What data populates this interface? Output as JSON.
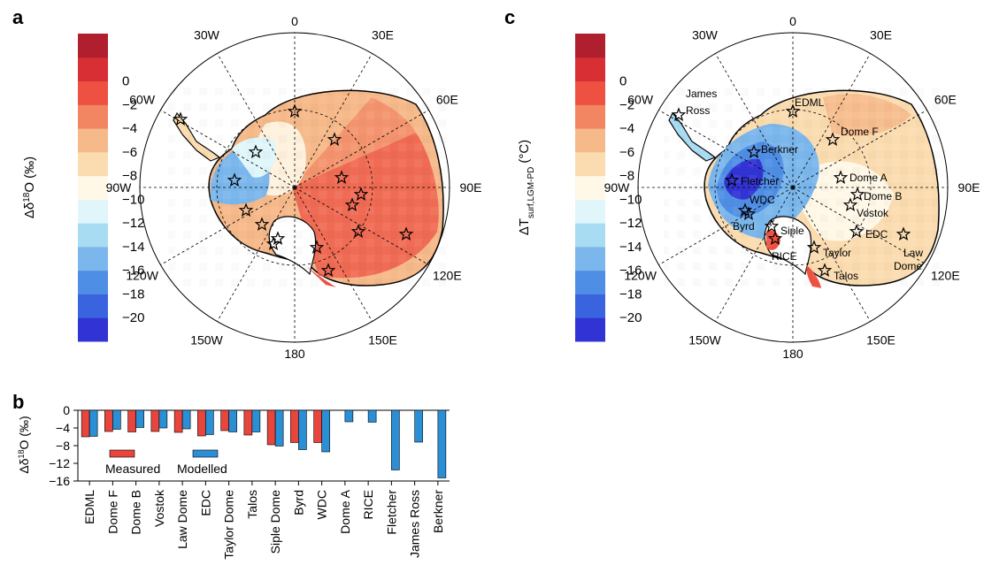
{
  "panels": {
    "a": {
      "label": "a"
    },
    "b": {
      "label": "b"
    },
    "c": {
      "label": "c"
    }
  },
  "colorbar_a": {
    "label_main": "Δδ",
    "label_sup": "18",
    "label_end": "O (‰)",
    "ticks": [
      "0",
      "−2",
      "−4",
      "−6",
      "−8",
      "−10",
      "−12",
      "−14",
      "−16",
      "−18",
      "−20"
    ]
  },
  "colorbar_c": {
    "label_main": "ΔT",
    "label_sub": "surf,LGM-PD",
    "label_end": "(°C)",
    "ticks": [
      "0",
      "−2",
      "−4",
      "−6",
      "−8",
      "−10",
      "−12",
      "−14",
      "−16",
      "−18",
      "−20"
    ]
  },
  "colors": {
    "scale": [
      "#3233d4",
      "#3a63df",
      "#4f8ee5",
      "#7bb7ec",
      "#a8dcf2",
      "#e0f6fa",
      "#fff8e7",
      "#fbdcb0",
      "#f6b98a",
      "#f28562",
      "#ee5142",
      "#d72f33",
      "#b01f2e"
    ],
    "measured": "#e8453c",
    "modelled": "#2b8fd6"
  },
  "map_labels": {
    "lon": [
      "0",
      "30E",
      "60E",
      "90E",
      "120E",
      "150E",
      "180",
      "150W",
      "120W",
      "90W",
      "60W",
      "30W"
    ]
  },
  "map_a_stations": [
    "EDML",
    "Dome F",
    "Dome B",
    "Vostok",
    "Law Dome",
    "EDC",
    "Taylor Dome",
    "Talos",
    "Siple Dome",
    "Byrd",
    "WDC",
    "Dome A",
    "RICE",
    "Fletcher",
    "James Ross",
    "Berkner"
  ],
  "map_c_stations": {
    "labels": [
      "James",
      "Ross",
      "EDML",
      "Dome F",
      "Berkner",
      "Fletcher",
      "WDC",
      "Byrd",
      "Siple",
      "RICE",
      "Dome A",
      "Dome B",
      "Vostok",
      "EDC",
      "Law",
      "Dome",
      "Taylor",
      "Talos"
    ]
  },
  "chart_data": {
    "type": "bar",
    "ylabel_main": "Δδ",
    "ylabel_sup": "18",
    "ylabel_end": "O (‰)",
    "ylim": [
      -16,
      0
    ],
    "yticks": [
      "0",
      "−4",
      "−8",
      "−12",
      "−16"
    ],
    "legend": {
      "measured": "Measured",
      "modelled": "Modelled",
      "placement": "lower-left"
    },
    "categories": [
      "EDML",
      "Dome F",
      "Dome B",
      "Vostok",
      "Law Dome",
      "EDC",
      "Taylor Dome",
      "Talos",
      "Siple Dome",
      "Byrd",
      "WDC",
      "Dome A",
      "RICE",
      "Fletcher",
      "James Ross",
      "Berkner"
    ],
    "series": [
      {
        "name": "Measured",
        "values": [
          -6.0,
          -4.8,
          -4.9,
          -4.8,
          -5.0,
          -5.8,
          -4.6,
          -5.6,
          -7.8,
          -7.3,
          -7.3,
          null,
          null,
          null,
          null,
          null
        ]
      },
      {
        "name": "Modelled",
        "values": [
          -5.9,
          -4.3,
          -3.9,
          -4.0,
          -4.2,
          -5.5,
          -4.9,
          -4.9,
          -8.1,
          -8.9,
          -9.4,
          -2.6,
          -2.7,
          -13.5,
          -7.2,
          -15.3
        ]
      }
    ]
  }
}
